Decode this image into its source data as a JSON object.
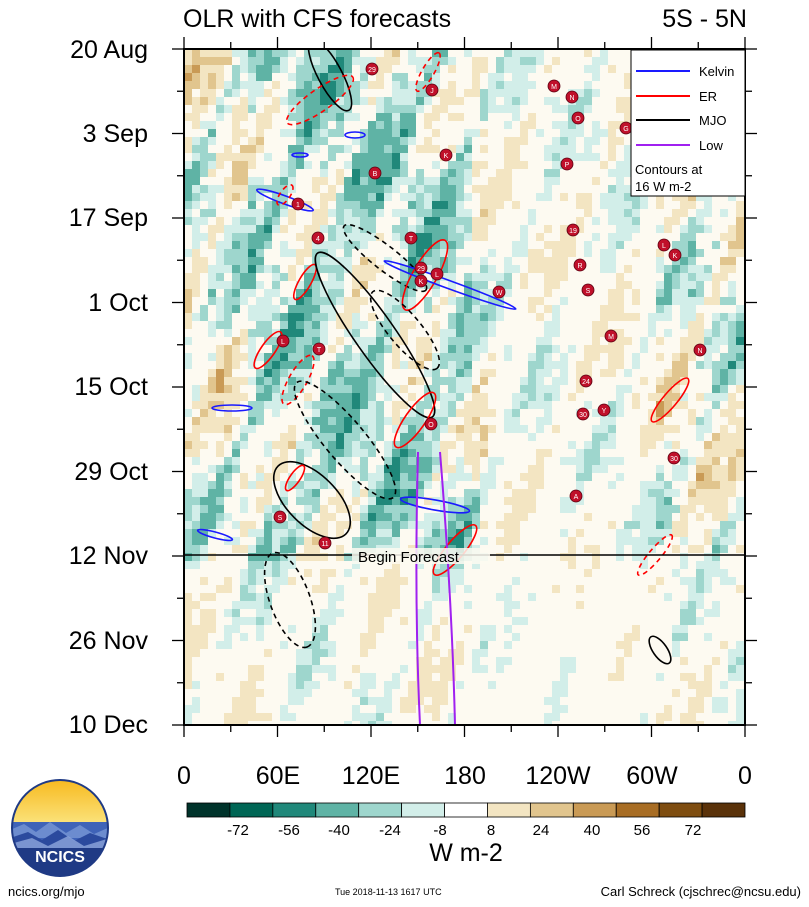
{
  "title_left": "OLR with CFS forecasts",
  "title_right": "5S - 5N",
  "y_ticks": [
    "20 Aug",
    "3 Sep",
    "17 Sep",
    "1 Oct",
    "15 Oct",
    "29 Oct",
    "12 Nov",
    "26 Nov",
    "10 Dec"
  ],
  "x_ticks": [
    "0",
    "60E",
    "120E",
    "180",
    "120W",
    "60W",
    "0"
  ],
  "forecast_label": "Begin Forecast",
  "legend": {
    "items": [
      {
        "label": "Kelvin",
        "color": "#1a1aff"
      },
      {
        "label": "ER",
        "color": "#ff0000"
      },
      {
        "label": "MJO",
        "color": "#000000"
      },
      {
        "label": "Low",
        "color": "#a020f0"
      }
    ],
    "note_line1": "Contours at",
    "note_line2": "16 W m-2"
  },
  "colorbar": {
    "ticks": [
      "-72",
      "-56",
      "-40",
      "-24",
      "-8",
      "8",
      "24",
      "40",
      "56",
      "72"
    ],
    "colors": [
      "#00332b",
      "#006655",
      "#20887a",
      "#5fb3a5",
      "#9ed6cd",
      "#d2eee9",
      "#ffffff",
      "#f3e5c2",
      "#e1c58e",
      "#c99a55",
      "#a86d24",
      "#7e4d10",
      "#5a320a"
    ],
    "units": "W m-2"
  },
  "logo_text": "NCICS",
  "footer_left": "ncics.org/mjo",
  "footer_center": "Tue 2018-11-13 1617 UTC",
  "footer_right": "Carl Schreck (cjschrec@ncsu.edu)",
  "chart_data": {
    "type": "heatmap",
    "title": "OLR with CFS forecasts",
    "region": "5S - 5N",
    "x_axis": {
      "ticks": [
        "0",
        "60E",
        "120E",
        "180",
        "120W",
        "60W",
        "0"
      ],
      "range_deg_east": [
        0,
        360
      ]
    },
    "y_axis": {
      "ticks": [
        "20 Aug",
        "3 Sep",
        "17 Sep",
        "1 Oct",
        "15 Oct",
        "29 Oct",
        "12 Nov",
        "26 Nov",
        "10 Dec"
      ],
      "range": [
        "20 Aug",
        "10 Dec"
      ]
    },
    "forecast_start": "12 Nov",
    "colorbar_levels": [
      -72,
      -56,
      -40,
      -24,
      -8,
      8,
      24,
      40,
      56,
      72
    ],
    "units": "W m-2",
    "filtered_contours": [
      "Kelvin",
      "ER",
      "MJO",
      "Low"
    ],
    "contour_interval": "16 W m-2",
    "storm_labels": [
      "29",
      "J",
      "M",
      "N",
      "O",
      "G",
      "K",
      "B",
      "P",
      "1",
      "4",
      "T",
      "19",
      "L",
      "K",
      "R",
      "29",
      "W",
      "S",
      "L",
      "M",
      "N",
      "T",
      "24",
      "30",
      "Y",
      "O",
      "30",
      "A",
      "S",
      "11",
      "L",
      "K"
    ]
  }
}
